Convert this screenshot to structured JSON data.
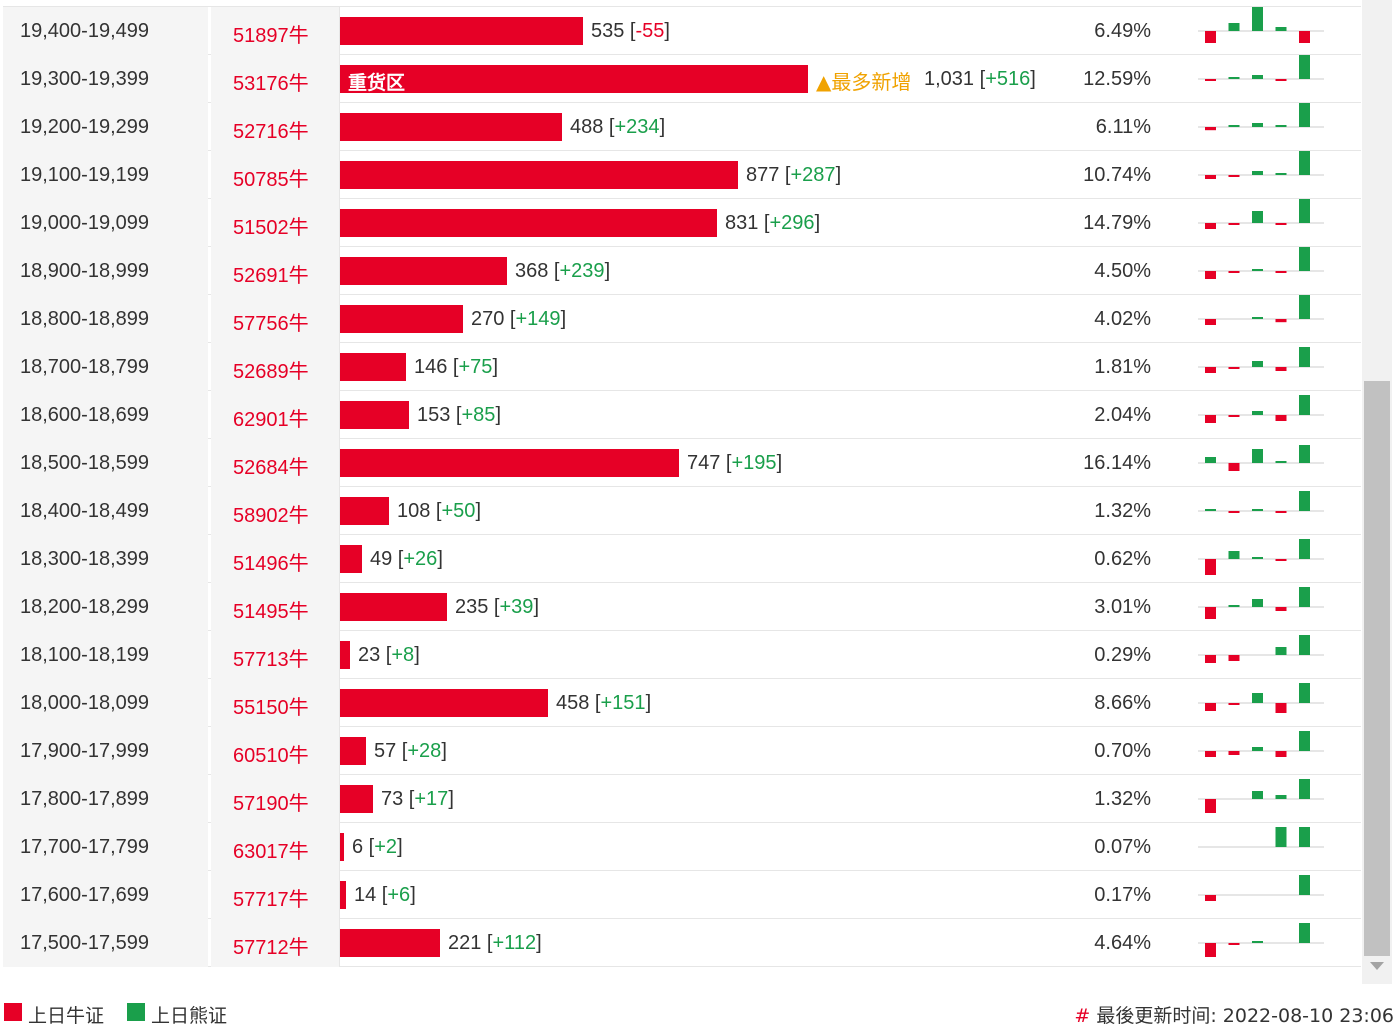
{
  "colors": {
    "bull": "#e60026",
    "bear": "#1a9f4b",
    "accent": "#f0a200",
    "text": "#333333"
  },
  "scale_max": 1031,
  "rows": [
    {
      "range": "19,400-19,499",
      "code": "51897牛",
      "value": "535",
      "value_num": 535,
      "change": "-55",
      "pct": "6.49%",
      "tag": "",
      "bar_label": "",
      "mini": [
        -3,
        2,
        6,
        1,
        -3
      ]
    },
    {
      "range": "19,300-19,399",
      "code": "53176牛",
      "value": "1,031",
      "value_num": 1031,
      "change": "+516",
      "pct": "12.59%",
      "tag": "▲最多新增",
      "bar_label": "重货区",
      "mini": [
        -0.5,
        0.5,
        1,
        -0.5,
        6
      ]
    },
    {
      "range": "19,200-19,299",
      "code": "52716牛",
      "value": "488",
      "value_num": 488,
      "change": "+234",
      "pct": "6.11%",
      "tag": "",
      "bar_label": "",
      "mini": [
        -0.8,
        0.5,
        1,
        0.5,
        6
      ]
    },
    {
      "range": "19,100-19,199",
      "code": "50785牛",
      "value": "877",
      "value_num": 877,
      "change": "+287",
      "pct": "10.74%",
      "tag": "",
      "bar_label": "",
      "mini": [
        -1,
        -0.5,
        1,
        0.5,
        6
      ]
    },
    {
      "range": "19,000-19,099",
      "code": "51502牛",
      "value": "831",
      "value_num": 831,
      "change": "+296",
      "pct": "14.79%",
      "tag": "",
      "bar_label": "",
      "mini": [
        -1.5,
        -0.5,
        3,
        -0.5,
        6
      ]
    },
    {
      "range": "18,900-18,999",
      "code": "52691牛",
      "value": "368",
      "value_num": 368,
      "change": "+239",
      "pct": "4.50%",
      "tag": "",
      "bar_label": "",
      "mini": [
        -2,
        -0.5,
        0.5,
        -0.5,
        6
      ]
    },
    {
      "range": "18,800-18,899",
      "code": "57756牛",
      "value": "270",
      "value_num": 270,
      "change": "+149",
      "pct": "4.02%",
      "tag": "",
      "bar_label": "",
      "mini": [
        -1.5,
        0,
        0.5,
        -0.8,
        6
      ]
    },
    {
      "range": "18,700-18,799",
      "code": "52689牛",
      "value": "146",
      "value_num": 146,
      "change": "+75",
      "pct": "1.81%",
      "tag": "",
      "bar_label": "",
      "mini": [
        -1.5,
        -0.5,
        1.5,
        -1,
        5
      ]
    },
    {
      "range": "18,600-18,699",
      "code": "62901牛",
      "value": "153",
      "value_num": 153,
      "change": "+85",
      "pct": "2.04%",
      "tag": "",
      "bar_label": "",
      "mini": [
        -2,
        -0.5,
        1,
        -1.5,
        5
      ]
    },
    {
      "range": "18,500-18,599",
      "code": "52684牛",
      "value": "747",
      "value_num": 747,
      "change": "+195",
      "pct": "16.14%",
      "tag": "",
      "bar_label": "",
      "mini": [
        1.5,
        -2,
        3.5,
        0.5,
        4.5
      ]
    },
    {
      "range": "18,400-18,499",
      "code": "58902牛",
      "value": "108",
      "value_num": 108,
      "change": "+50",
      "pct": "1.32%",
      "tag": "",
      "bar_label": "",
      "mini": [
        0.5,
        -0.5,
        0.5,
        -0.5,
        5
      ]
    },
    {
      "range": "18,300-18,399",
      "code": "51496牛",
      "value": "49",
      "value_num": 49,
      "change": "+26",
      "pct": "0.62%",
      "tag": "",
      "bar_label": "",
      "mini": [
        -4,
        2,
        0.5,
        -0.5,
        5
      ]
    },
    {
      "range": "18,200-18,299",
      "code": "51495牛",
      "value": "235",
      "value_num": 235,
      "change": "+39",
      "pct": "3.01%",
      "tag": "",
      "bar_label": "",
      "mini": [
        -3,
        0.5,
        2,
        -1,
        5
      ]
    },
    {
      "range": "18,100-18,199",
      "code": "57713牛",
      "value": "23",
      "value_num": 23,
      "change": "+8",
      "pct": "0.29%",
      "tag": "",
      "bar_label": "",
      "mini": [
        -2,
        -1.5,
        0,
        2,
        5
      ]
    },
    {
      "range": "18,000-18,099",
      "code": "55150牛",
      "value": "458",
      "value_num": 458,
      "change": "+151",
      "pct": "8.66%",
      "tag": "",
      "bar_label": "",
      "mini": [
        -2,
        -0.5,
        2.5,
        -2.5,
        5
      ]
    },
    {
      "range": "17,900-17,999",
      "code": "60510牛",
      "value": "57",
      "value_num": 57,
      "change": "+28",
      "pct": "0.70%",
      "tag": "",
      "bar_label": "",
      "mini": [
        -1.5,
        -1,
        1,
        -1.5,
        5
      ]
    },
    {
      "range": "17,800-17,899",
      "code": "57190牛",
      "value": "73",
      "value_num": 73,
      "change": "+17",
      "pct": "1.32%",
      "tag": "",
      "bar_label": "",
      "mini": [
        -3.5,
        0,
        2,
        1,
        5
      ]
    },
    {
      "range": "17,700-17,799",
      "code": "63017牛",
      "value": "6",
      "value_num": 6,
      "change": "+2",
      "pct": "0.07%",
      "tag": "",
      "bar_label": "",
      "mini": [
        0,
        0,
        0,
        5,
        5
      ]
    },
    {
      "range": "17,600-17,699",
      "code": "57717牛",
      "value": "14",
      "value_num": 14,
      "change": "+6",
      "pct": "0.17%",
      "tag": "",
      "bar_label": "",
      "mini": [
        -1.5,
        0,
        0,
        0,
        5
      ]
    },
    {
      "range": "17,500-17,599",
      "code": "57712牛",
      "value": "221",
      "value_num": 221,
      "change": "+112",
      "pct": "4.64%",
      "tag": "",
      "bar_label": "",
      "mini": [
        -3.5,
        -0.5,
        0.5,
        0,
        5
      ]
    }
  ],
  "legend": {
    "bull_label": "上日牛证",
    "bear_label": "上日熊证"
  },
  "updated": {
    "hash": "#",
    "label": "最後更新时间:",
    "datetime": "2022-08-10 23:06"
  }
}
